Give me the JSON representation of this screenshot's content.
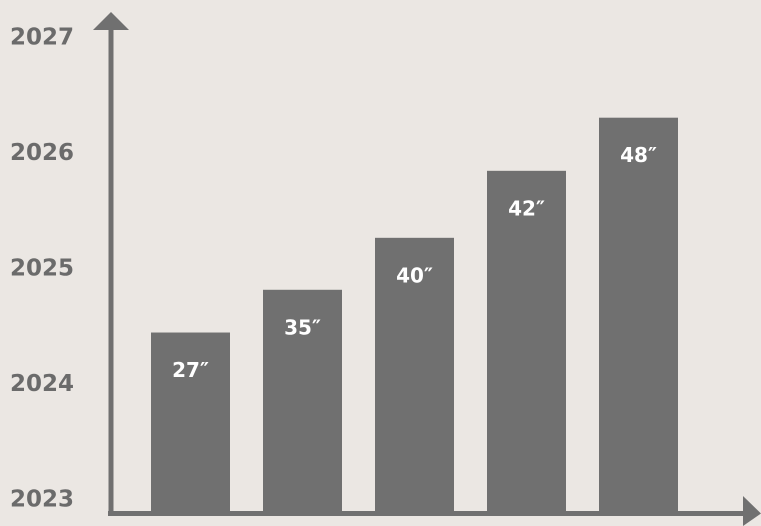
{
  "chart_data": {
    "type": "bar",
    "title": "",
    "xlabel": "",
    "ylabel": "",
    "categories": [
      "",
      "",
      "",
      "",
      ""
    ],
    "values": [
      2024.45,
      2024.82,
      2025.27,
      2025.85,
      2026.31
    ],
    "data_labels": [
      "27″",
      "35″",
      "40″",
      "42″",
      "48″"
    ],
    "y_ticks": [
      "2023",
      "2024",
      "2025",
      "2026",
      "2027"
    ],
    "ylim": [
      2023,
      2027
    ],
    "grid": false,
    "legend": "none",
    "colors": {
      "background": "#ebe7e3",
      "bar": "#707070",
      "axis": "#707070",
      "tick_text": "#6b6b6b",
      "bar_text": "#ffffff"
    }
  }
}
